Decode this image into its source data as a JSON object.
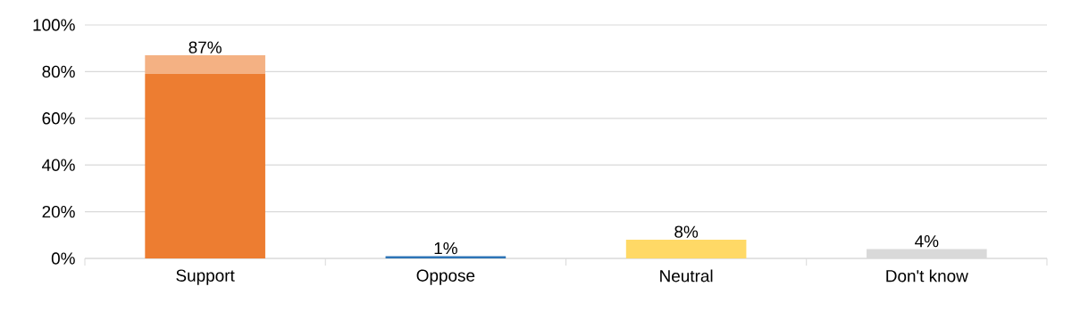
{
  "chart_data": {
    "type": "bar",
    "stacked": true,
    "categories": [
      "Support",
      "Oppose",
      "Neutral",
      "Don't know"
    ],
    "series": [
      {
        "colors": [
          "#ed7d31",
          "#2e75b6",
          "#ffd966",
          "#d9d9d9"
        ],
        "values": [
          79,
          1,
          8,
          4
        ]
      },
      {
        "color": "#f4b183",
        "values": [
          8,
          null,
          null,
          null
        ]
      }
    ],
    "totals": [
      "87%",
      "1%",
      "8%",
      "4%"
    ],
    "ylim": [
      0,
      100
    ],
    "yticks": [
      {
        "value": 0,
        "label": "0%"
      },
      {
        "value": 20,
        "label": "20%"
      },
      {
        "value": 40,
        "label": "40%"
      },
      {
        "value": 60,
        "label": "60%"
      },
      {
        "value": 80,
        "label": "80%"
      },
      {
        "value": 100,
        "label": "100%"
      }
    ],
    "grid": "y"
  }
}
